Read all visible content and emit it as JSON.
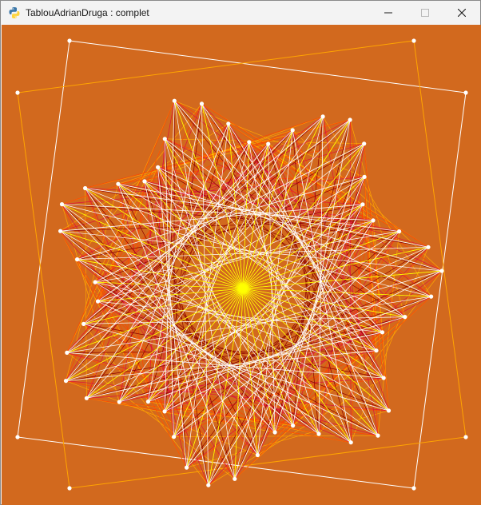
{
  "window": {
    "title": "TablouAdrianDruga : complet"
  },
  "icons": {
    "app": "python-snake-icon",
    "minimize": "minimize-icon",
    "maximize": "maximize-icon",
    "close": "close-icon"
  },
  "colors": {
    "canvas_background": "#d2691e",
    "string_palette": [
      "#ffffff",
      "#ffff00",
      "#ffa500",
      "#ff4500",
      "#dc143c",
      "#8b0000"
    ],
    "frame_white": "#ffffff",
    "frame_orange": "#ffa500"
  }
}
